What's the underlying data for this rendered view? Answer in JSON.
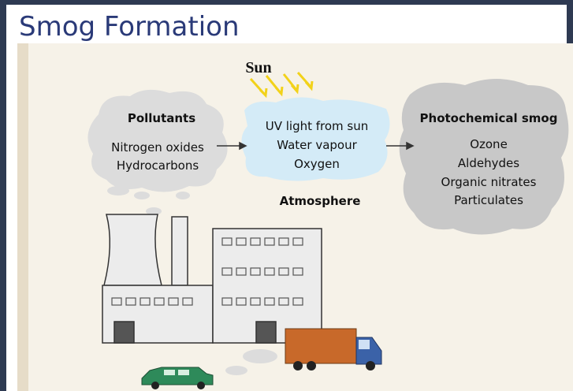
{
  "title": "Smog Formation",
  "sun_label": "Sun",
  "nodes": [
    {
      "label": "Pollutants",
      "items": [
        "Nitrogen oxides",
        "Hydrocarbons"
      ]
    },
    {
      "label": null,
      "items": [
        "UV light from sun",
        "Water vapour",
        "Oxygen"
      ]
    },
    {
      "label": "Photochemical smog",
      "items": [
        "Ozone",
        "Aldehydes",
        "Organic nitrates",
        "Particulates"
      ]
    }
  ],
  "atmosphere_label": "Atmosphere"
}
